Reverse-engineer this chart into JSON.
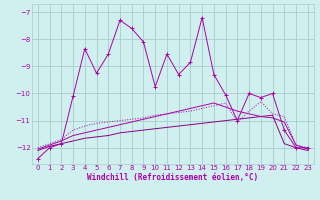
{
  "background_color": "#cff0ee",
  "grid_color": "#aacccc",
  "line_color": "#aa00aa",
  "line_color2": "#880088",
  "xlabel": "Windchill (Refroidissement éolien,°C)",
  "xlim": [
    -0.5,
    23.5
  ],
  "ylim": [
    -12.6,
    -6.7
  ],
  "yticks": [
    -12,
    -11,
    -10,
    -9,
    -8,
    -7
  ],
  "xticks": [
    0,
    1,
    2,
    3,
    4,
    5,
    6,
    7,
    8,
    9,
    10,
    11,
    12,
    13,
    14,
    15,
    16,
    17,
    18,
    19,
    20,
    21,
    22,
    23
  ],
  "s1_x": [
    0,
    1,
    2,
    3,
    4,
    5,
    6,
    7,
    8,
    9,
    10,
    11,
    12,
    13,
    14,
    15,
    16,
    17,
    18,
    19,
    20,
    21,
    22,
    23
  ],
  "s1_y": [
    -12.4,
    -12.0,
    -11.85,
    -10.1,
    -8.35,
    -9.25,
    -8.55,
    -7.3,
    -7.6,
    -8.1,
    -9.75,
    -8.55,
    -9.3,
    -8.85,
    -7.2,
    -9.3,
    -10.05,
    -11.0,
    -10.0,
    -10.15,
    -10.0,
    -11.35,
    -12.0,
    -12.0
  ],
  "s2_x": [
    0,
    1,
    2,
    3,
    4,
    5,
    6,
    7,
    8,
    9,
    10,
    11,
    12,
    13,
    14,
    15,
    16,
    17,
    18,
    19,
    20,
    21,
    22,
    23
  ],
  "s2_y": [
    -12.0,
    -11.85,
    -11.7,
    -11.35,
    -11.2,
    -11.1,
    -11.05,
    -11.0,
    -10.95,
    -10.9,
    -10.8,
    -10.75,
    -10.7,
    -10.65,
    -10.55,
    -10.45,
    -10.35,
    -11.05,
    -10.65,
    -10.3,
    -10.75,
    -10.85,
    -11.9,
    -12.0
  ],
  "s3_x": [
    0,
    1,
    2,
    3,
    4,
    5,
    6,
    7,
    8,
    9,
    10,
    11,
    12,
    13,
    14,
    15,
    16,
    17,
    18,
    19,
    20,
    21,
    22,
    23
  ],
  "s3_y": [
    -12.05,
    -11.9,
    -11.75,
    -11.55,
    -11.45,
    -11.35,
    -11.25,
    -11.15,
    -11.05,
    -10.95,
    -10.85,
    -10.75,
    -10.65,
    -10.55,
    -10.45,
    -10.35,
    -10.5,
    -10.65,
    -10.75,
    -10.85,
    -10.9,
    -11.05,
    -11.9,
    -12.05
  ],
  "s4_x": [
    0,
    1,
    2,
    3,
    4,
    5,
    6,
    7,
    8,
    9,
    10,
    11,
    12,
    13,
    14,
    15,
    16,
    17,
    18,
    19,
    20,
    21,
    22,
    23
  ],
  "s4_y": [
    -12.1,
    -11.95,
    -11.85,
    -11.75,
    -11.65,
    -11.6,
    -11.55,
    -11.45,
    -11.4,
    -11.35,
    -11.3,
    -11.25,
    -11.2,
    -11.15,
    -11.1,
    -11.05,
    -11.0,
    -10.95,
    -10.9,
    -10.85,
    -10.8,
    -11.85,
    -12.0,
    -12.1
  ]
}
